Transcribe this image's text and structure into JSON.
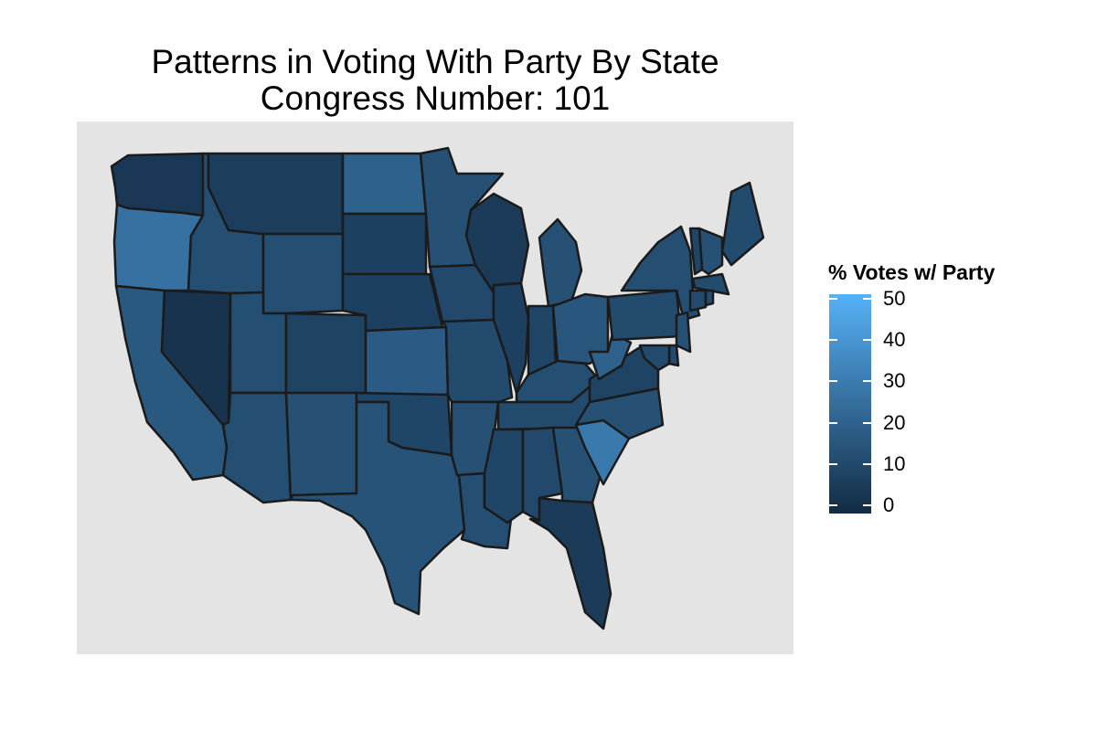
{
  "chart_data": {
    "type": "choropleth",
    "title": [
      "Patterns in Voting With Party By State",
      "Congress Number: 101"
    ],
    "legend": {
      "title": "% Votes w/ Party",
      "min": 0,
      "max": 50,
      "ticks": [
        "0",
        "10",
        "20",
        "30",
        "40",
        "50"
      ],
      "low_color": "#132b43",
      "high_color": "#56b1f7",
      "placement": "right"
    },
    "region_values": {
      "WA": 5,
      "OR": 26,
      "CA": 17,
      "NV": 3,
      "ID": 13,
      "MT": 7,
      "WY": 13,
      "UT": 13,
      "AZ": 13,
      "CO": 9,
      "NM": 14,
      "ND": 20,
      "SD": 8,
      "NE": 8,
      "KS": 18,
      "OK": 10,
      "TX": 15,
      "MN": 14,
      "IA": 11,
      "MO": 12,
      "AR": 14,
      "LA": 13,
      "WI": 6,
      "IL": 8,
      "MI": 14,
      "IN": 10,
      "OH": 16,
      "KY": 13,
      "TN": 12,
      "MS": 10,
      "AL": 11,
      "GA": 14,
      "FL": 6,
      "SC": 29,
      "NC": 14,
      "VA": 9,
      "WV": 20,
      "PA": 12,
      "NY": 13,
      "ME": 12,
      "VT": 10,
      "NH": 14,
      "MA": 12,
      "CT": 12,
      "NJ": 14,
      "MD": 12,
      "DE": 12,
      "RI": 12
    }
  }
}
